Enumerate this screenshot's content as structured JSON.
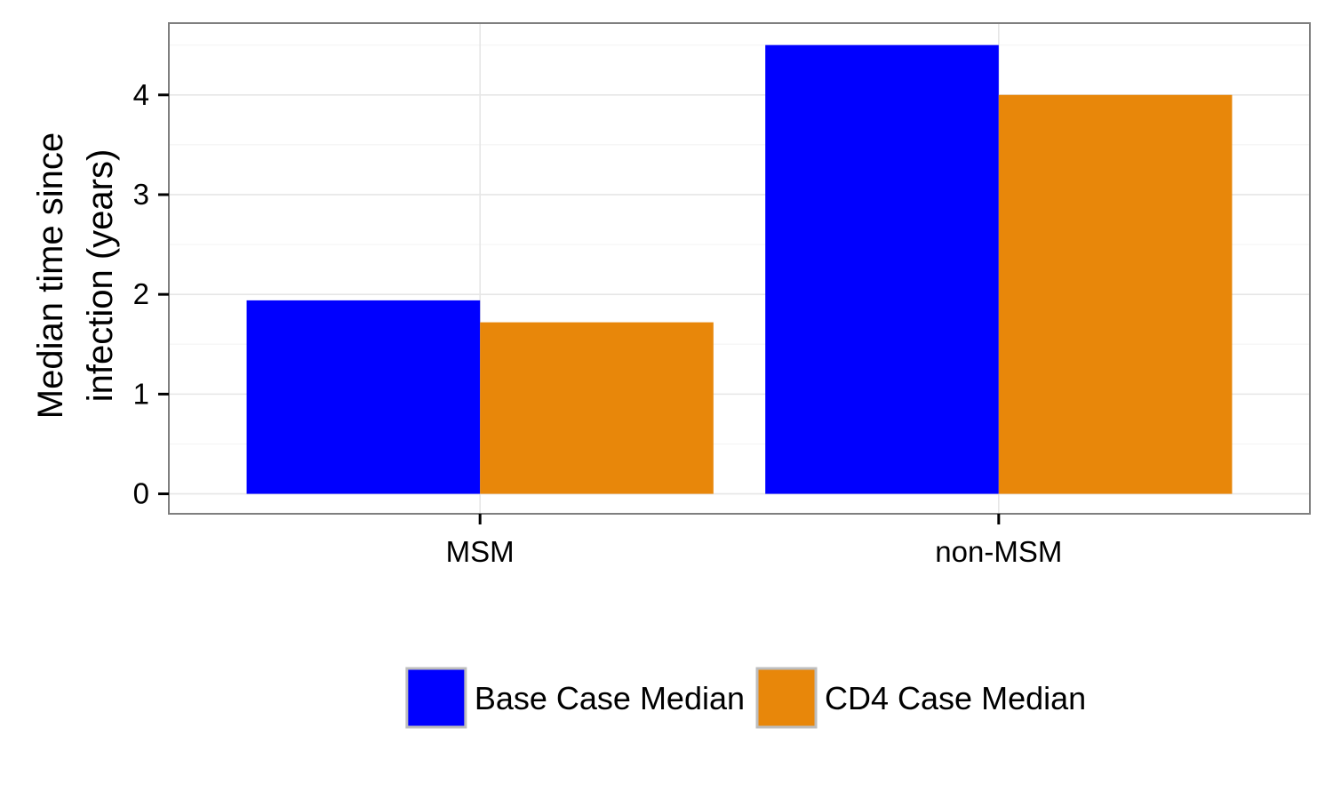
{
  "chart_data": {
    "type": "bar",
    "title": "",
    "xlabel": "",
    "ylabel_lines": [
      "Median time since",
      "infection (years)"
    ],
    "categories": [
      "MSM",
      "non-MSM"
    ],
    "series": [
      {
        "name": "Base Case Median",
        "color": "#0000ff",
        "values": [
          1.94,
          4.5
        ]
      },
      {
        "name": "CD4 Case Median",
        "color": "#e8870a",
        "values": [
          1.72,
          4.0
        ]
      }
    ],
    "ylim": [
      -0.2,
      4.72
    ],
    "yticks": [
      0,
      1,
      2,
      3,
      4
    ],
    "grid": true,
    "legend_position": "bottom"
  }
}
